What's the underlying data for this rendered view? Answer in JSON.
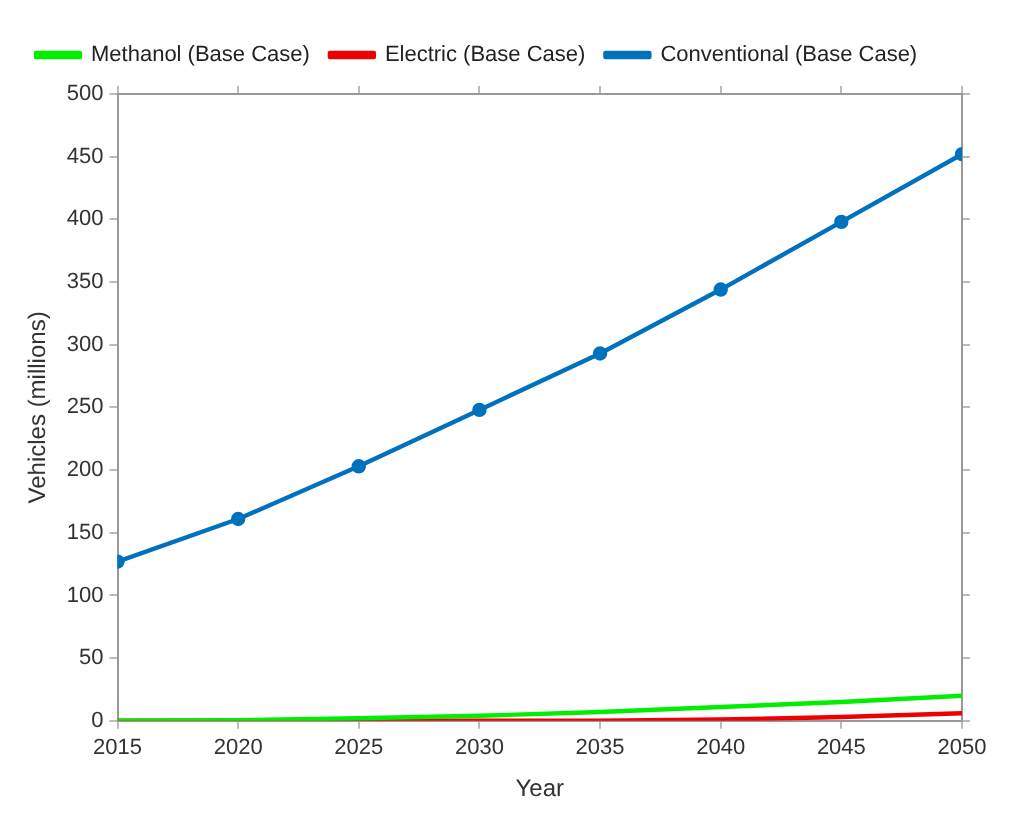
{
  "chart_data": {
    "type": "line",
    "xlabel": "Year",
    "ylabel": "Vehicles (millions)",
    "x": [
      2015,
      2020,
      2025,
      2030,
      2035,
      2040,
      2045,
      2050
    ],
    "series": [
      {
        "name": "Methanol (Base Case)",
        "color": "#00ee00",
        "marker": "none",
        "values": [
          0,
          0.5,
          2,
          4,
          7,
          11,
          15,
          20
        ]
      },
      {
        "name": "Electric (Base Case)",
        "color": "#ee0000",
        "marker": "none",
        "values": [
          0,
          0,
          0,
          0,
          0,
          1,
          3,
          6
        ]
      },
      {
        "name": "Conventional (Base Case)",
        "color": "#0072bd",
        "marker": "circle",
        "values": [
          127,
          161,
          203,
          248,
          293,
          344,
          398,
          452
        ]
      }
    ],
    "xlim": [
      2015,
      2050
    ],
    "xticks": [
      2015,
      2020,
      2025,
      2030,
      2035,
      2040,
      2045,
      2050
    ],
    "ylim": [
      0,
      500
    ],
    "yticks": [
      0,
      50,
      100,
      150,
      200,
      250,
      300,
      350,
      400,
      450,
      500
    ],
    "grid": false,
    "legend": "top left",
    "line_style": "solid"
  }
}
